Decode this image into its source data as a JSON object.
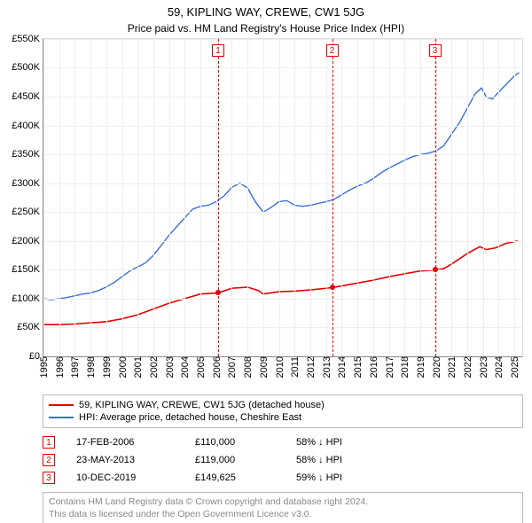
{
  "title": "59, KIPLING WAY, CREWE, CW1 5JG",
  "subtitle": "Price paid vs. HM Land Registry's House Price Index (HPI)",
  "chart": {
    "type": "line",
    "background_color": "#ffffff",
    "grid_color": "#eeeeee",
    "axis_color": "#888888",
    "border_color": "#dcdcdc",
    "xlim": [
      1995,
      2025.5
    ],
    "ylim": [
      0,
      550000
    ],
    "ytick_step": 50000,
    "yticks": [
      "£0",
      "£50K",
      "£100K",
      "£150K",
      "£200K",
      "£250K",
      "£300K",
      "£350K",
      "£400K",
      "£450K",
      "£500K",
      "£550K"
    ],
    "xticks": [
      1995,
      1996,
      1997,
      1998,
      1999,
      2000,
      2001,
      2002,
      2003,
      2004,
      2005,
      2006,
      2007,
      2008,
      2009,
      2010,
      2011,
      2012,
      2013,
      2014,
      2015,
      2016,
      2017,
      2018,
      2019,
      2020,
      2021,
      2022,
      2023,
      2024,
      2025
    ],
    "label_fontsize": 11,
    "series": [
      {
        "name": "price_paid",
        "label": "59, KIPLING WAY, CREWE, CW1 5JG (detached house)",
        "color": "#e60000",
        "line_width": 1.6,
        "data": [
          [
            1995.0,
            55000
          ],
          [
            1996.0,
            55000
          ],
          [
            1997.0,
            56000
          ],
          [
            1998.0,
            58000
          ],
          [
            1999.0,
            60000
          ],
          [
            2000.0,
            65000
          ],
          [
            2001.0,
            72000
          ],
          [
            2002.0,
            82000
          ],
          [
            2003.0,
            92000
          ],
          [
            2004.0,
            100000
          ],
          [
            2005.0,
            108000
          ],
          [
            2006.13,
            110000
          ],
          [
            2007.0,
            118000
          ],
          [
            2008.0,
            120000
          ],
          [
            2008.7,
            114000
          ],
          [
            2009.0,
            108000
          ],
          [
            2010.0,
            112000
          ],
          [
            2011.0,
            113000
          ],
          [
            2012.0,
            115000
          ],
          [
            2013.39,
            119000
          ],
          [
            2014.0,
            122000
          ],
          [
            2015.0,
            127000
          ],
          [
            2016.0,
            132000
          ],
          [
            2017.0,
            138000
          ],
          [
            2018.0,
            143000
          ],
          [
            2019.0,
            148000
          ],
          [
            2019.94,
            149625
          ],
          [
            2020.5,
            152000
          ],
          [
            2021.0,
            160000
          ],
          [
            2022.0,
            178000
          ],
          [
            2022.8,
            190000
          ],
          [
            2023.2,
            185000
          ],
          [
            2023.8,
            188000
          ],
          [
            2024.5,
            196000
          ],
          [
            2025.2,
            200000
          ]
        ]
      },
      {
        "name": "hpi",
        "label": "HPI: Average price, detached house, Cheshire East",
        "color": "#3a6fd8",
        "line_width": 1.4,
        "data": [
          [
            1995.0,
            100000
          ],
          [
            1995.5,
            98000
          ],
          [
            1996.0,
            100000
          ],
          [
            1996.5,
            102000
          ],
          [
            1997.0,
            105000
          ],
          [
            1997.5,
            108000
          ],
          [
            1998.0,
            110000
          ],
          [
            1998.5,
            114000
          ],
          [
            1999.0,
            120000
          ],
          [
            1999.5,
            128000
          ],
          [
            2000.0,
            138000
          ],
          [
            2000.5,
            148000
          ],
          [
            2001.0,
            155000
          ],
          [
            2001.5,
            162000
          ],
          [
            2002.0,
            175000
          ],
          [
            2002.5,
            192000
          ],
          [
            2003.0,
            210000
          ],
          [
            2003.5,
            225000
          ],
          [
            2004.0,
            240000
          ],
          [
            2004.5,
            255000
          ],
          [
            2005.0,
            260000
          ],
          [
            2005.5,
            262000
          ],
          [
            2006.0,
            268000
          ],
          [
            2006.5,
            278000
          ],
          [
            2007.0,
            293000
          ],
          [
            2007.5,
            300000
          ],
          [
            2008.0,
            292000
          ],
          [
            2008.5,
            268000
          ],
          [
            2009.0,
            250000
          ],
          [
            2009.5,
            258000
          ],
          [
            2010.0,
            268000
          ],
          [
            2010.5,
            270000
          ],
          [
            2011.0,
            262000
          ],
          [
            2011.5,
            260000
          ],
          [
            2012.0,
            262000
          ],
          [
            2012.5,
            265000
          ],
          [
            2013.0,
            268000
          ],
          [
            2013.5,
            272000
          ],
          [
            2014.0,
            280000
          ],
          [
            2014.5,
            288000
          ],
          [
            2015.0,
            295000
          ],
          [
            2015.5,
            300000
          ],
          [
            2016.0,
            308000
          ],
          [
            2016.5,
            318000
          ],
          [
            2017.0,
            326000
          ],
          [
            2017.5,
            333000
          ],
          [
            2018.0,
            340000
          ],
          [
            2018.5,
            346000
          ],
          [
            2019.0,
            350000
          ],
          [
            2019.5,
            352000
          ],
          [
            2020.0,
            356000
          ],
          [
            2020.5,
            365000
          ],
          [
            2021.0,
            385000
          ],
          [
            2021.5,
            405000
          ],
          [
            2022.0,
            430000
          ],
          [
            2022.5,
            455000
          ],
          [
            2022.9,
            465000
          ],
          [
            2023.2,
            450000
          ],
          [
            2023.6,
            446000
          ],
          [
            2024.0,
            458000
          ],
          [
            2024.5,
            472000
          ],
          [
            2025.0,
            486000
          ],
          [
            2025.3,
            492000
          ]
        ]
      }
    ],
    "markers": [
      {
        "n": "1",
        "x": 2006.13,
        "y": 110000,
        "color": "#e60000"
      },
      {
        "n": "2",
        "x": 2013.39,
        "y": 119000,
        "color": "#e60000"
      },
      {
        "n": "3",
        "x": 2019.94,
        "y": 149625,
        "color": "#e60000"
      }
    ],
    "marker_line_color": "#e60000",
    "marker_box_border": "#e60000",
    "marker_box_text_color": "#e60000",
    "dot_color": "#e60000"
  },
  "legend": {
    "border_color": "#bbbbbb",
    "items": [
      {
        "color": "#e60000",
        "label": "59, KIPLING WAY, CREWE, CW1 5JG (detached house)"
      },
      {
        "color": "#3a6fd8",
        "label": "HPI: Average price, detached house, Cheshire East"
      }
    ]
  },
  "events": [
    {
      "n": "1",
      "date": "17-FEB-2006",
      "price": "£110,000",
      "delta": "58% ↓ HPI",
      "color": "#e60000"
    },
    {
      "n": "2",
      "date": "23-MAY-2013",
      "price": "£119,000",
      "delta": "58% ↓ HPI",
      "color": "#e60000"
    },
    {
      "n": "3",
      "date": "10-DEC-2019",
      "price": "£149,625",
      "delta": "59% ↓ HPI",
      "color": "#e60000"
    }
  ],
  "disclaimer": {
    "line1": "Contains HM Land Registry data © Crown copyright and database right 2024.",
    "line2": "This data is licensed under the Open Government Licence v3.0.",
    "color": "#888888",
    "border_color": "#bbbbbb"
  }
}
